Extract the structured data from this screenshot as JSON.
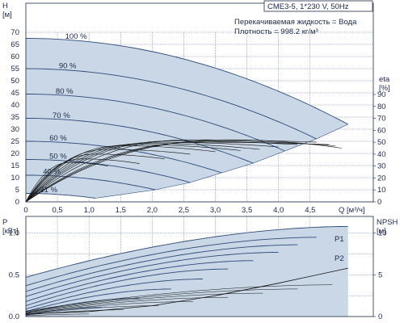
{
  "colors": {
    "axis": "#1e2a4a",
    "grid": "#2a3a5a",
    "fill": "#c9d7e6",
    "curve": "#2e4a78",
    "efficiency": "#111111",
    "text": "#1e2a4a"
  },
  "title_box": "CME3-5, 1*230 V, 50Hz",
  "info_lines": [
    "Перекачиваемая жидкость = Вода",
    "Плотность = 998.2 кг/м³"
  ],
  "chart_data": [
    {
      "type": "line",
      "x_label": "Q [м³/ч]",
      "y_label": [
        "H",
        "[м]"
      ],
      "y2_label": [
        "eta",
        "[%]"
      ],
      "xlim": [
        0,
        5.5
      ],
      "ylim": [
        0,
        70
      ],
      "y2lim": [
        0,
        90
      ],
      "x_ticks": [
        "0",
        "0,5",
        "1,0",
        "1,5",
        "2,0",
        "2,5",
        "3,0",
        "3,5",
        "4,0",
        "4,5"
      ],
      "y_ticks": [
        "0",
        "5",
        "10",
        "15",
        "20",
        "25",
        "30",
        "35",
        "40",
        "45",
        "50",
        "55",
        "60",
        "65",
        "70"
      ],
      "y2_ticks": [
        "0",
        "10",
        "20",
        "30",
        "40",
        "50",
        "60",
        "70",
        "80",
        "90"
      ],
      "series": [
        {
          "name": "100 %",
          "H0": 67.5,
          "Qmax": 5.1,
          "Hend": 32.0
        },
        {
          "name": "90 %",
          "H0": 55.0,
          "Qmax": 4.6,
          "Hend": 26.0
        },
        {
          "name": "80 %",
          "H0": 44.5,
          "Qmax": 4.1,
          "Hend": 21.0
        },
        {
          "name": "70 %",
          "H0": 34.5,
          "Qmax": 3.6,
          "Hend": 16.0
        },
        {
          "name": "60 %",
          "H0": 25.0,
          "Qmax": 3.1,
          "Hend": 12.0
        },
        {
          "name": "50 %",
          "H0": 17.5,
          "Qmax": 2.6,
          "Hend": 8.0
        },
        {
          "name": "40 %",
          "H0": 11.0,
          "Qmax": 2.05,
          "Hend": 5.0
        },
        {
          "name": "21 %",
          "H0": 3.5,
          "Qmax": 1.1,
          "Hend": 1.5
        }
      ],
      "efficiency_curves": [
        {
          "Qmax": 5.0,
          "peak": 52,
          "qpk": 3.2,
          "end": 45
        },
        {
          "Qmax": 4.9,
          "peak": 51,
          "qpk": 3.0,
          "end": 47
        },
        {
          "Qmax": 4.8,
          "peak": 50,
          "qpk": 2.8,
          "end": 48
        },
        {
          "Qmax": 4.6,
          "peak": 52,
          "qpk": 2.6,
          "end": 50
        },
        {
          "Qmax": 4.3,
          "peak": 51,
          "qpk": 2.3,
          "end": 48
        },
        {
          "Qmax": 4.0,
          "peak": 50,
          "qpk": 2.1,
          "end": 46
        },
        {
          "Qmax": 3.7,
          "peak": 49,
          "qpk": 1.9,
          "end": 44
        },
        {
          "Qmax": 3.4,
          "peak": 48,
          "qpk": 1.7,
          "end": 43
        },
        {
          "Qmax": 3.0,
          "peak": 47,
          "qpk": 1.5,
          "end": 42
        },
        {
          "Qmax": 2.6,
          "peak": 44,
          "qpk": 1.3,
          "end": 40
        },
        {
          "Qmax": 2.2,
          "peak": 40,
          "qpk": 1.1,
          "end": 36
        },
        {
          "Qmax": 1.8,
          "peak": 36,
          "qpk": 0.9,
          "end": 32
        },
        {
          "Qmax": 1.3,
          "peak": 33,
          "qpk": 0.7,
          "end": 30
        }
      ]
    },
    {
      "type": "line",
      "y_label": [
        "P",
        "[кВт]"
      ],
      "y2_label": [
        "NPSH",
        "[м]"
      ],
      "xlim": [
        0,
        5.5
      ],
      "ylim": [
        0,
        1.2
      ],
      "y2lim": [
        0,
        12
      ],
      "y_ticks": [
        "0.0",
        "0.5",
        "1.0"
      ],
      "y2_ticks": [
        "0",
        "5",
        "10"
      ],
      "series_labels": [
        "P1",
        "P2"
      ],
      "power_curves": [
        {
          "P0": 0.47,
          "Qmax": 5.1,
          "Pend": 1.08
        },
        {
          "P0": 0.37,
          "Qmax": 4.6,
          "Pend": 0.95
        },
        {
          "P0": 0.3,
          "Qmax": 4.3,
          "Pend": 0.86
        },
        {
          "P0": 0.24,
          "Qmax": 4.0,
          "Pend": 0.77
        },
        {
          "P0": 0.18,
          "Qmax": 3.6,
          "Pend": 0.67
        },
        {
          "P0": 0.13,
          "Qmax": 3.2,
          "Pend": 0.57
        },
        {
          "P0": 0.09,
          "Qmax": 2.8,
          "Pend": 0.45
        },
        {
          "P0": 0.06,
          "Qmax": 2.3,
          "Pend": 0.33
        },
        {
          "P0": 0.04,
          "Qmax": 1.8,
          "Pend": 0.22
        },
        {
          "P0": 0.02,
          "Qmax": 1.2,
          "Pend": 0.11
        }
      ],
      "npsh": {
        "Q": [
          0,
          1.0,
          2.0,
          3.0,
          4.0,
          5.1
        ],
        "values": [
          0.3,
          0.6,
          1.3,
          2.5,
          4.0,
          5.8
        ]
      }
    }
  ]
}
